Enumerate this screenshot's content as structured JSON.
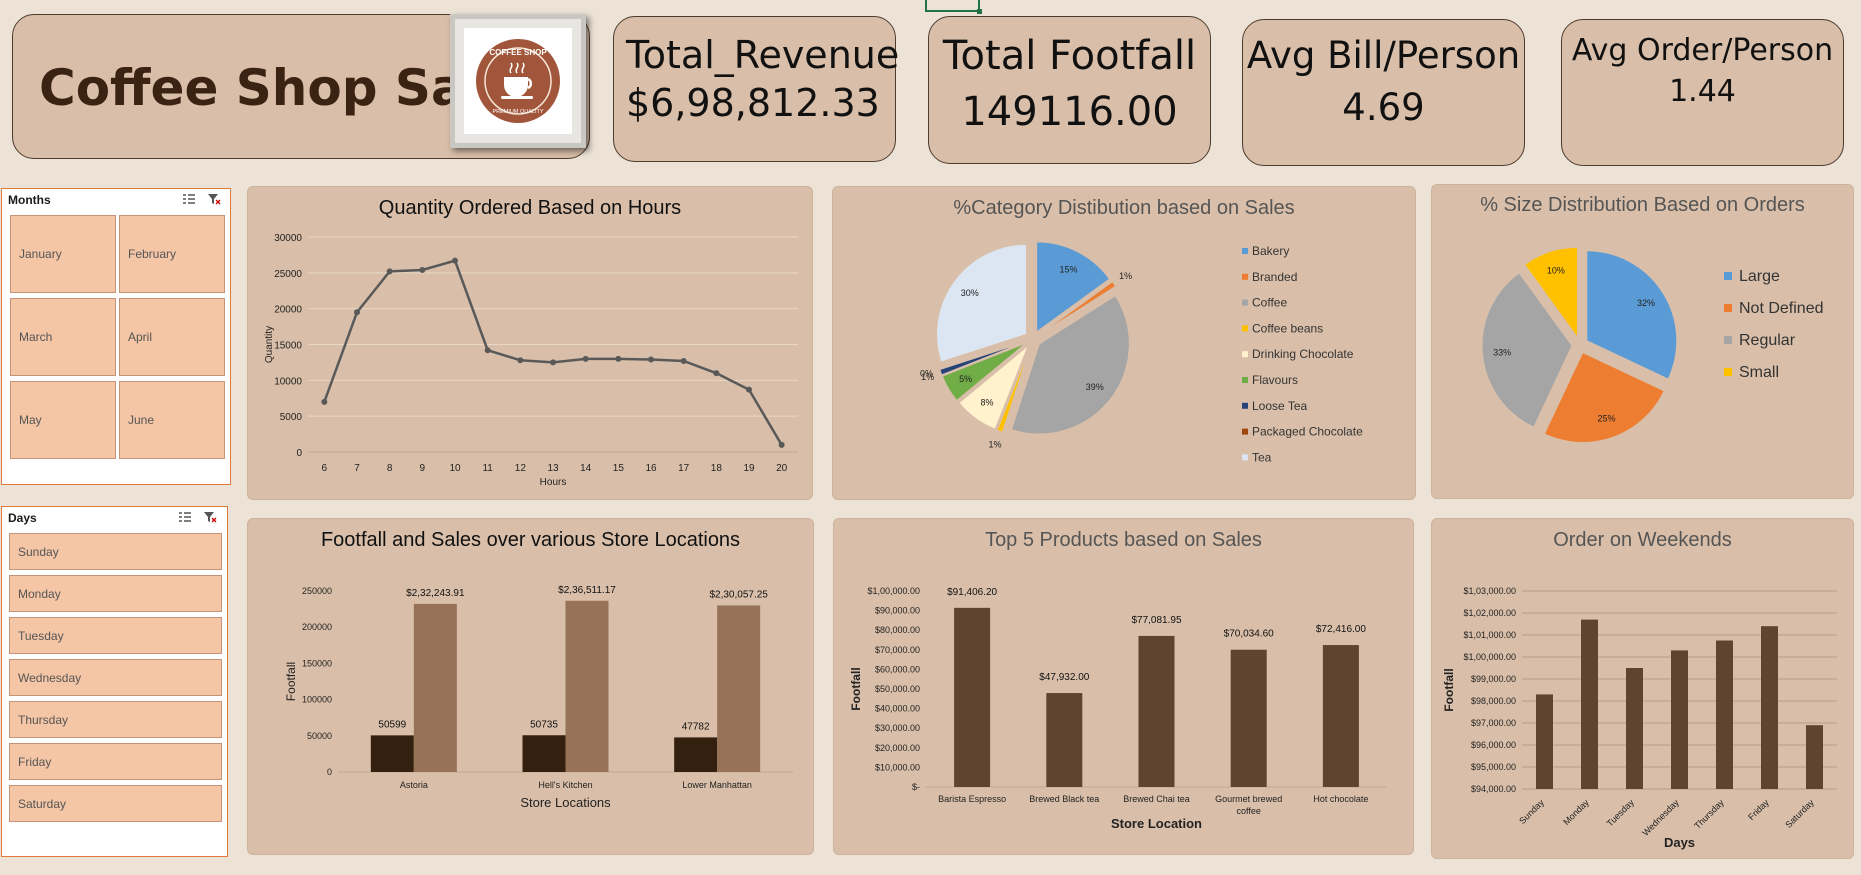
{
  "header": {
    "title": "Coffee Shop Sales",
    "logo_top": "COFFEE SHOP",
    "logo_bottom": "PREMIUM QUALITY"
  },
  "kpis": [
    {
      "title": "Total_Revenue",
      "value": "$6,98,812.33"
    },
    {
      "title": "Total Footfall",
      "value": "149116.00"
    },
    {
      "title": "Avg Bill/Person",
      "value": "4.69"
    },
    {
      "title": "Avg Order/Person",
      "value": "1.44"
    }
  ],
  "slicers": {
    "months": {
      "title": "Months",
      "items": [
        "January",
        "February",
        "March",
        "April",
        "May",
        "June"
      ]
    },
    "days": {
      "title": "Days",
      "items": [
        "Sunday",
        "Monday",
        "Tuesday",
        "Wednesday",
        "Thursday",
        "Friday",
        "Saturday"
      ]
    }
  },
  "colors": {
    "bg": "#ece3d6",
    "panel": "#d9bfa9",
    "dark_bar": "#5e4530",
    "footfall_bar": "#33200f",
    "sales_bar": "#977256",
    "line": "#595959"
  },
  "chart_data": [
    {
      "id": "hours",
      "type": "line",
      "title": "Quantity Ordered Based on Hours",
      "xlabel": "Hours",
      "ylabel": "Quantity",
      "x": [
        "6",
        "7",
        "8",
        "9",
        "10",
        "11",
        "12",
        "13",
        "14",
        "15",
        "16",
        "17",
        "18",
        "19",
        "20"
      ],
      "values": [
        7000,
        19500,
        25200,
        25400,
        26700,
        14200,
        12800,
        12500,
        13000,
        13000,
        12900,
        12700,
        11000,
        8700,
        1000
      ],
      "yticks": [
        "0",
        "5000",
        "10000",
        "15000",
        "20000",
        "25000",
        "30000"
      ],
      "ylim": [
        0,
        30000
      ],
      "grid": true
    },
    {
      "id": "category",
      "type": "pie",
      "title": "%Category Distibution based on Sales",
      "labels": [
        "Bakery",
        "Branded",
        "Coffee",
        "Coffee beans",
        "Drinking Chocolate",
        "Flavours",
        "Loose Tea",
        "Packaged Chocolate",
        "Tea"
      ],
      "values": [
        15,
        1,
        39,
        1,
        8,
        5,
        1,
        0,
        30
      ],
      "value_labels": [
        "15%",
        "1%",
        "39%",
        "1%",
        "8%",
        "5%",
        "1%",
        "0%",
        "30%"
      ],
      "colors": [
        "#5b9bd5",
        "#ed7d31",
        "#a5a5a5",
        "#ffc000",
        "#fff2cc",
        "#70ad47",
        "#264478",
        "#9e480e",
        "#dce6f2"
      ],
      "legend": "right"
    },
    {
      "id": "size",
      "type": "pie",
      "title": "% Size Distribution Based on Orders",
      "labels": [
        "Large",
        "Not Defined",
        "Regular",
        "Small"
      ],
      "values": [
        32,
        25,
        33,
        10
      ],
      "value_labels": [
        "32%",
        "25%",
        "33%",
        "10%"
      ],
      "colors": [
        "#5b9bd5",
        "#ed7d31",
        "#a5a5a5",
        "#ffc000"
      ],
      "legend": "right"
    },
    {
      "id": "locations",
      "type": "bar",
      "title": "Footfall and Sales over various Store Locations",
      "xlabel": "Store Locations",
      "ylabel": "Footfall",
      "categories": [
        "Astoria",
        "Hell's Kitchen",
        "Lower Manhattan"
      ],
      "series": [
        {
          "values": [
            50599,
            50735,
            47782
          ],
          "labels": [
            "50599",
            "50735",
            "47782"
          ]
        },
        {
          "values": [
            232243.91,
            236511.17,
            230057.25
          ],
          "labels": [
            "$2,32,243.91",
            "$2,36,511.17",
            "$2,30,057.25"
          ]
        }
      ],
      "yticks": [
        "0",
        "50000",
        "100000",
        "150000",
        "200000",
        "250000"
      ],
      "ylim": [
        0,
        250000
      ]
    },
    {
      "id": "products",
      "type": "bar",
      "title": "Top 5 Products based on Sales",
      "xlabel": "Store Location",
      "ylabel": "Footfall",
      "categories": [
        "Barista Espresso",
        "Brewed Black tea",
        "Brewed Chai tea",
        "Gourmet brewed coffee",
        "Hot chocolate"
      ],
      "values": [
        91406.2,
        47932.0,
        77081.95,
        70034.6,
        72416.0
      ],
      "value_labels": [
        "$91,406.20",
        "$47,932.00",
        "$77,081.95",
        "$70,034.60",
        "$72,416.00"
      ],
      "yticks": [
        "$-",
        "$10,000.00",
        "$20,000.00",
        "$30,000.00",
        "$40,000.00",
        "$50,000.00",
        "$60,000.00",
        "$70,000.00",
        "$80,000.00",
        "$90,000.00",
        "$1,00,000.00"
      ],
      "ylim": [
        0,
        100000
      ]
    },
    {
      "id": "weekends",
      "type": "bar",
      "title": "Order on Weekends",
      "xlabel": "Days",
      "ylabel": "Footfall",
      "categories": [
        "Sunday",
        "Monday",
        "Tuesday",
        "Wednesday",
        "Thursday",
        "Friday",
        "Saturday"
      ],
      "values": [
        98300,
        101700,
        99500,
        100300,
        100750,
        101400,
        96900
      ],
      "yticks": [
        "$94,000.00",
        "$95,000.00",
        "$96,000.00",
        "$97,000.00",
        "$98,000.00",
        "$99,000.00",
        "$1,00,000.00",
        "$1,01,000.00",
        "$1,02,000.00",
        "$1,03,000.00"
      ],
      "ylim": [
        94000,
        103000
      ],
      "grid": true
    }
  ]
}
